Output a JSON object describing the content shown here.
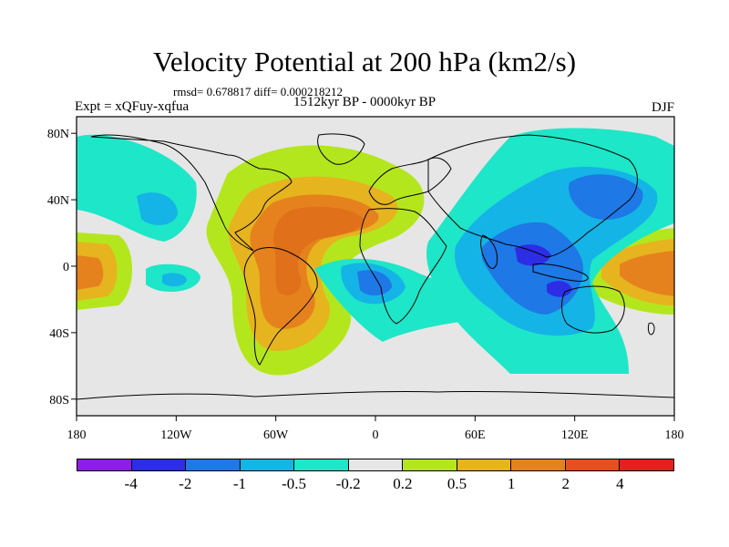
{
  "figure": {
    "title": "Velocity Potential at 200 hPa (km2/s)",
    "subtitle": "rmsd= 0.678817 diff= 0.000218212",
    "left_label": "Expt = xQFuy-xqfua",
    "center_label": "1512kyr BP - 0000kyr BP",
    "right_label": "DJF"
  },
  "axes": {
    "lat_ticks": [
      "80N",
      "40N",
      "0",
      "40S",
      "80S"
    ],
    "lon_ticks": [
      "180",
      "120W",
      "60W",
      "0",
      "60E",
      "120E",
      "180"
    ]
  },
  "colorbar": {
    "colors": [
      "#8c1ee6",
      "#2d2de6",
      "#1e78e6",
      "#14b4e6",
      "#1ee6c8",
      "#e6e6e6",
      "#b4e61e",
      "#e6b41e",
      "#e6821e",
      "#e6501e",
      "#e61e1e"
    ],
    "labels": [
      "-4",
      "-2",
      "-1",
      "-0.5",
      "-0.2",
      "0.2",
      "0.5",
      "1",
      "2",
      "4"
    ]
  },
  "chart_data": {
    "type": "heatmap",
    "title": "Velocity Potential at 200 hPa (km2/s)",
    "field": "velocity potential difference",
    "units": "km2/s",
    "levels": [
      -4,
      -2,
      -1,
      -0.5,
      -0.2,
      0.2,
      0.5,
      1,
      2,
      4
    ],
    "lon_range": [
      -180,
      180
    ],
    "lat_range": [
      -90,
      90
    ],
    "features": [
      {
        "region": "South America / tropical Atlantic",
        "sign": "positive",
        "peak_level": "2"
      },
      {
        "region": "Central Pacific near 180",
        "sign": "positive",
        "peak_level": "2"
      },
      {
        "region": "Maritime Continent / Indonesia",
        "sign": "negative",
        "peak_level": "-4"
      },
      {
        "region": "East Asia / Northwest Pacific",
        "sign": "negative",
        "peak_level": "-1"
      },
      {
        "region": "Gulf of Guinea / tropical East Atlantic",
        "sign": "negative",
        "peak_level": "-1"
      },
      {
        "region": "North Pacific 40N 140W",
        "sign": "negative",
        "peak_level": "-0.5"
      }
    ]
  }
}
